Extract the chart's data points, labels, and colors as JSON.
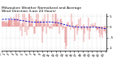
{
  "title": "Milwaukee Weather Normalized and Average Wind Direction (Last 24 Hours)",
  "subtitle": "Last 24 Hours",
  "n_points": 144,
  "y_min": -1.1,
  "y_max": 0.6,
  "background_color": "#ffffff",
  "plot_bg_color": "#ffffff",
  "red_line_color": "#cc0000",
  "blue_line_color": "#0000cc",
  "grid_color": "#aaaaaa",
  "title_fontsize": 3.2,
  "tick_fontsize": 2.8,
  "seed": 7
}
